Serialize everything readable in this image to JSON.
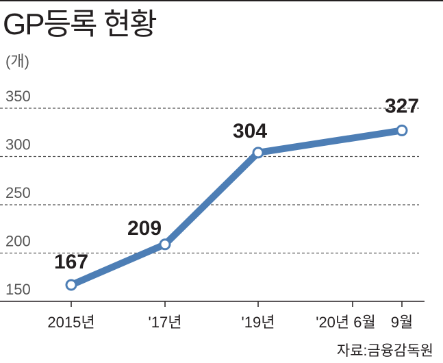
{
  "title": "GP등록 현황",
  "unit": "(개)",
  "source": "자료:금융감독원",
  "colors": {
    "line": "#4d7eb5",
    "text": "#231f20",
    "grid": "#555555",
    "tick": "#555555"
  },
  "chart_data": {
    "type": "line",
    "title": "GP등록 현황",
    "ylabel": "(개)",
    "xlabel": "",
    "ylim": [
      150,
      350
    ],
    "yticks": [
      "350",
      "300",
      "250",
      "200",
      "150"
    ],
    "ytick_values": [
      350,
      300,
      250,
      200,
      150
    ],
    "grid": "dashed horizontal",
    "x": [
      "2015년",
      "'17년",
      "'19년",
      "'20년 6월",
      "9월"
    ],
    "series": [
      {
        "values": [
          167,
          209,
          304,
          null,
          327
        ],
        "labels": [
          "167",
          "209",
          "304",
          "",
          "327"
        ]
      }
    ]
  }
}
